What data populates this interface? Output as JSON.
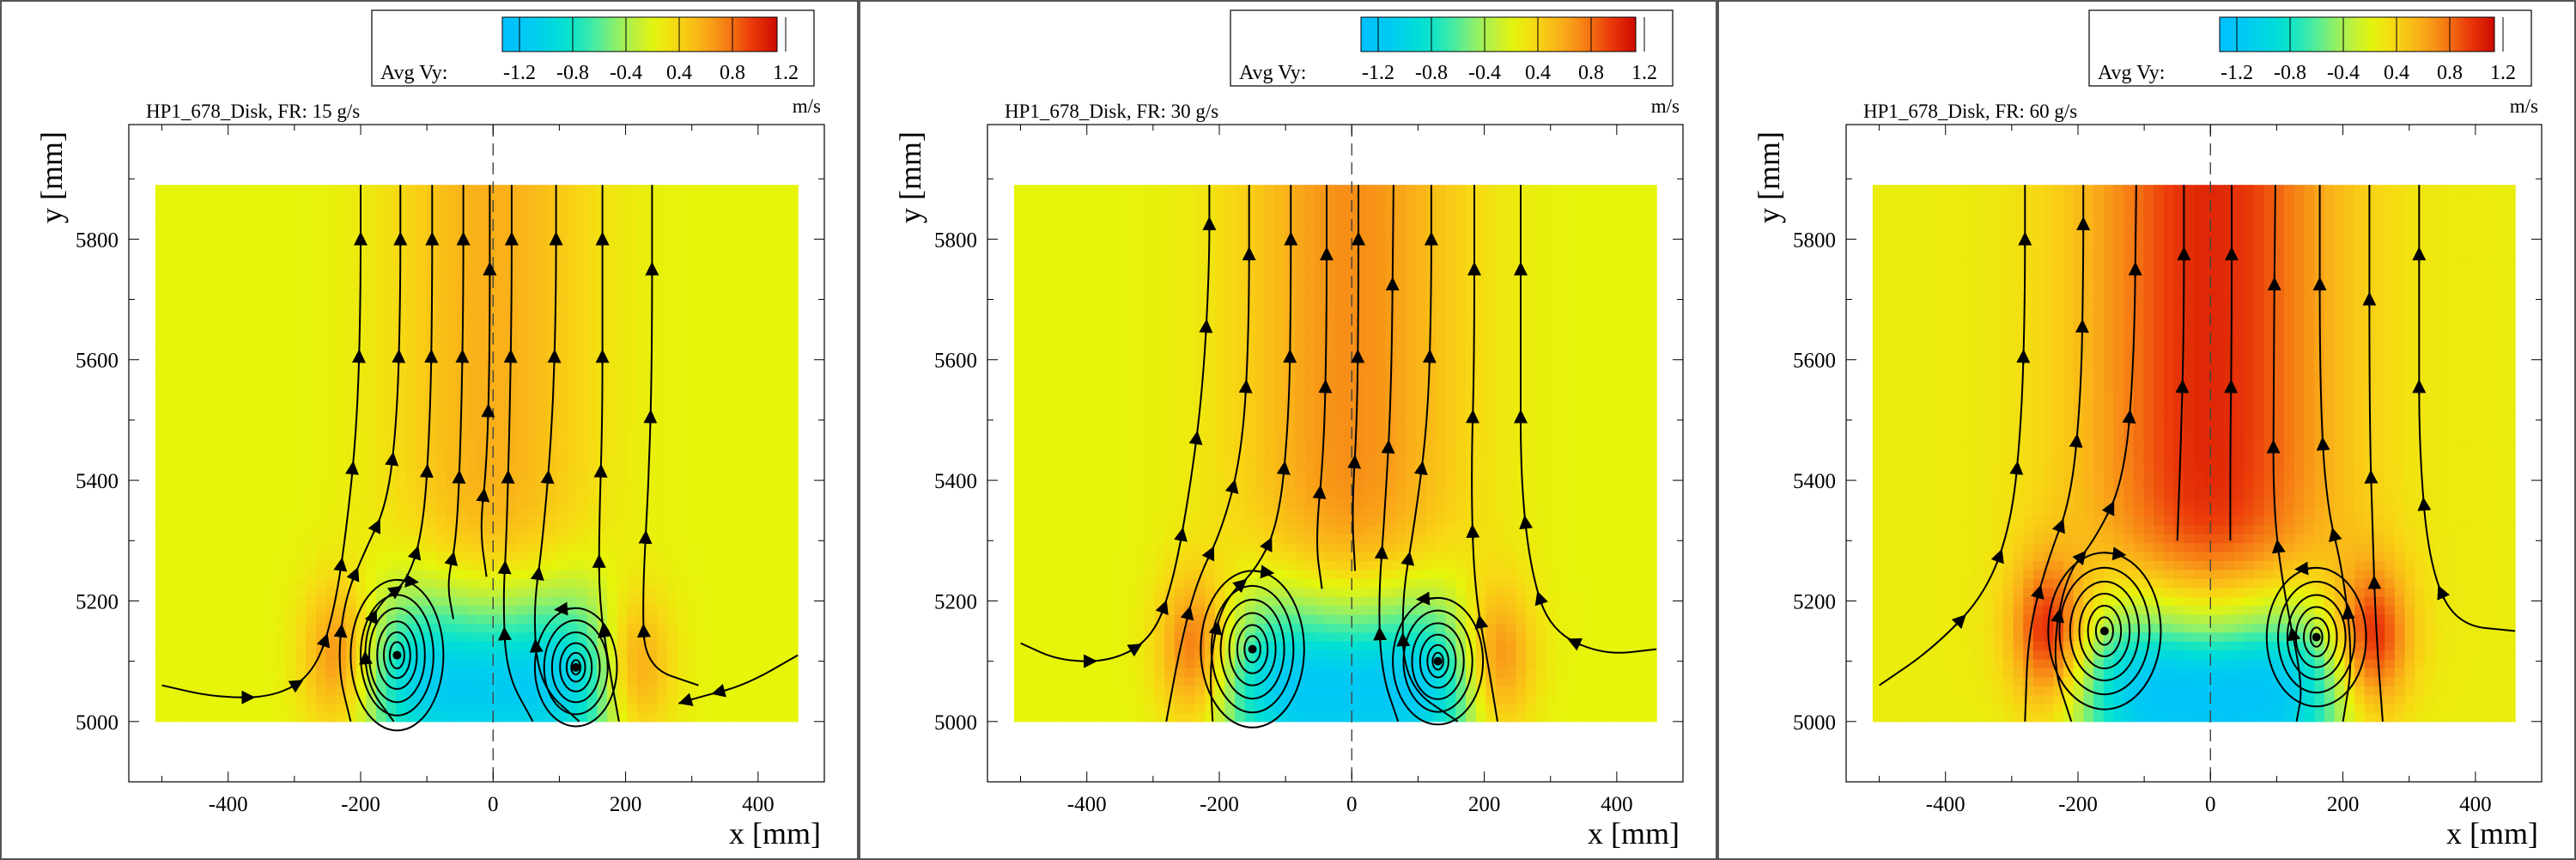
{
  "chart_data": [
    {
      "type": "heatmap",
      "title": "HP1_678_Disk, FR: 15 g/s",
      "xlabel": "x [mm]",
      "ylabel": "y [mm]",
      "xlim": [
        -550,
        500
      ],
      "ylim": [
        4900,
        5990
      ],
      "x_ticks": [
        -400,
        -200,
        0,
        200,
        400
      ],
      "y_ticks": [
        5000,
        5200,
        5400,
        5600,
        5800
      ],
      "colorbar": {
        "label": "Avg Vy:",
        "unit": "m/s",
        "ticks": [
          -1.2,
          -0.8,
          -0.4,
          0.4,
          0.8,
          1.2
        ]
      },
      "field": {
        "x_range": [
          -510,
          460
        ],
        "y_range": [
          5000,
          5890
        ],
        "background": 0.15,
        "jet_peak": 0.45,
        "jet_width": 150,
        "vortex_strength": 1.15,
        "vortex_centers": [
          [
            -145,
            5110
          ],
          [
            125,
            5090
          ]
        ]
      },
      "streamlines": [
        [
          [
            -500,
            5060
          ],
          [
            -420,
            5040
          ],
          [
            -330,
            5040
          ],
          [
            -270,
            5080
          ],
          [
            -240,
            5180
          ],
          [
            -220,
            5330
          ],
          [
            -205,
            5500
          ],
          [
            -200,
            5700
          ],
          [
            -200,
            5890
          ]
        ],
        [
          [
            -215,
            5000
          ],
          [
            -235,
            5090
          ],
          [
            -225,
            5200
          ],
          [
            -195,
            5280
          ],
          [
            -160,
            5360
          ],
          [
            -145,
            5500
          ],
          [
            -140,
            5700
          ],
          [
            -140,
            5890
          ]
        ],
        [
          [
            -150,
            5000
          ],
          [
            -190,
            5060
          ],
          [
            -195,
            5140
          ],
          [
            -170,
            5200
          ],
          [
            -130,
            5230
          ],
          [
            -105,
            5320
          ],
          [
            -95,
            5500
          ],
          [
            -92,
            5700
          ],
          [
            -92,
            5890
          ]
        ],
        [
          [
            -60,
            5170
          ],
          [
            -70,
            5230
          ],
          [
            -55,
            5300
          ],
          [
            -48,
            5500
          ],
          [
            -45,
            5700
          ],
          [
            -45,
            5890
          ]
        ],
        [
          [
            -10,
            5240
          ],
          [
            -20,
            5320
          ],
          [
            -10,
            5420
          ],
          [
            -5,
            5600
          ],
          [
            -5,
            5890
          ]
        ],
        [
          [
            60,
            5000
          ],
          [
            20,
            5080
          ],
          [
            15,
            5200
          ],
          [
            20,
            5300
          ],
          [
            25,
            5500
          ],
          [
            28,
            5700
          ],
          [
            28,
            5890
          ]
        ],
        [
          [
            130,
            5000
          ],
          [
            70,
            5060
          ],
          [
            60,
            5180
          ],
          [
            75,
            5300
          ],
          [
            90,
            5500
          ],
          [
            95,
            5700
          ],
          [
            95,
            5890
          ]
        ],
        [
          [
            190,
            5000
          ],
          [
            175,
            5090
          ],
          [
            160,
            5200
          ],
          [
            160,
            5320
          ],
          [
            165,
            5500
          ],
          [
            165,
            5700
          ],
          [
            165,
            5890
          ]
        ],
        [
          [
            310,
            5060
          ],
          [
            230,
            5090
          ],
          [
            225,
            5200
          ],
          [
            235,
            5400
          ],
          [
            240,
            5600
          ],
          [
            240,
            5890
          ]
        ],
        [
          [
            460,
            5110
          ],
          [
            380,
            5060
          ],
          [
            310,
            5040
          ],
          [
            280,
            5030
          ]
        ]
      ],
      "vortices": [
        {
          "cx": -145,
          "cy": 5110,
          "rings": [
            [
              70,
              125
            ],
            [
              55,
              100
            ],
            [
              42,
              78
            ],
            [
              30,
              56
            ],
            [
              20,
              38
            ],
            [
              11,
              22
            ]
          ],
          "arrow": [
            [
              -145,
              5235
            ],
            [
              -120,
              5232
            ]
          ]
        },
        {
          "cx": 125,
          "cy": 5090,
          "rings": [
            [
              62,
              98
            ],
            [
              48,
              78
            ],
            [
              36,
              58
            ],
            [
              24,
              40
            ],
            [
              14,
              24
            ],
            [
              7,
              12
            ]
          ],
          "arrow": [
            [
              125,
              5188
            ],
            [
              100,
              5186
            ]
          ]
        }
      ]
    },
    {
      "type": "heatmap",
      "title": "HP1_678_Disk, FR: 30 g/s",
      "xlabel": "x [mm]",
      "ylabel": "y [mm]",
      "xlim": [
        -550,
        500
      ],
      "ylim": [
        4900,
        5990
      ],
      "x_ticks": [
        -400,
        -200,
        0,
        200,
        400
      ],
      "y_ticks": [
        5000,
        5200,
        5400,
        5600,
        5800
      ],
      "colorbar": {
        "label": "Avg Vy:",
        "unit": "m/s",
        "ticks": [
          -1.2,
          -0.8,
          -0.4,
          0.4,
          0.8,
          1.2
        ]
      },
      "field": {
        "x_range": [
          -510,
          460
        ],
        "y_range": [
          5000,
          5890
        ],
        "background": 0.15,
        "jet_peak": 0.6,
        "jet_width": 170,
        "vortex_strength": 1.25,
        "vortex_centers": [
          [
            -150,
            5120
          ],
          [
            130,
            5100
          ]
        ]
      },
      "streamlines": [
        [
          [
            -500,
            5130
          ],
          [
            -440,
            5100
          ],
          [
            -360,
            5100
          ],
          [
            -300,
            5140
          ],
          [
            -270,
            5230
          ],
          [
            -245,
            5380
          ],
          [
            -225,
            5550
          ],
          [
            -215,
            5750
          ],
          [
            -215,
            5890
          ]
        ],
        [
          [
            -280,
            5000
          ],
          [
            -260,
            5120
          ],
          [
            -235,
            5230
          ],
          [
            -195,
            5320
          ],
          [
            -165,
            5450
          ],
          [
            -155,
            5650
          ],
          [
            -155,
            5890
          ]
        ],
        [
          [
            -210,
            5000
          ],
          [
            -215,
            5100
          ],
          [
            -195,
            5200
          ],
          [
            -145,
            5250
          ],
          [
            -110,
            5330
          ],
          [
            -95,
            5500
          ],
          [
            -92,
            5700
          ],
          [
            -92,
            5890
          ]
        ],
        [
          [
            -45,
            5220
          ],
          [
            -55,
            5300
          ],
          [
            -42,
            5450
          ],
          [
            -38,
            5650
          ],
          [
            -38,
            5890
          ]
        ],
        [
          [
            5,
            5250
          ],
          [
            0,
            5350
          ],
          [
            8,
            5500
          ],
          [
            10,
            5700
          ],
          [
            10,
            5890
          ]
        ],
        [
          [
            70,
            5000
          ],
          [
            45,
            5080
          ],
          [
            40,
            5200
          ],
          [
            50,
            5350
          ],
          [
            60,
            5550
          ],
          [
            63,
            5890
          ]
        ],
        [
          [
            160,
            5000
          ],
          [
            80,
            5060
          ],
          [
            75,
            5200
          ],
          [
            95,
            5330
          ],
          [
            115,
            5500
          ],
          [
            120,
            5700
          ],
          [
            120,
            5890
          ]
        ],
        [
          [
            220,
            5000
          ],
          [
            205,
            5100
          ],
          [
            185,
            5220
          ],
          [
            180,
            5400
          ],
          [
            185,
            5600
          ],
          [
            185,
            5890
          ]
        ],
        [
          [
            460,
            5120
          ],
          [
            380,
            5110
          ],
          [
            300,
            5150
          ],
          [
            270,
            5250
          ],
          [
            255,
            5400
          ],
          [
            255,
            5600
          ],
          [
            255,
            5890
          ]
        ]
      ],
      "vortices": [
        {
          "cx": -150,
          "cy": 5120,
          "rings": [
            [
              78,
              130
            ],
            [
              62,
              105
            ],
            [
              48,
              82
            ],
            [
              35,
              60
            ],
            [
              23,
              40
            ],
            [
              12,
              22
            ]
          ],
          "arrow": [
            [
              -150,
              5250
            ],
            [
              -125,
              5247
            ]
          ]
        },
        {
          "cx": 130,
          "cy": 5100,
          "rings": [
            [
              68,
              105
            ],
            [
              52,
              84
            ],
            [
              39,
              63
            ],
            [
              27,
              44
            ],
            [
              16,
              27
            ],
            [
              8,
              14
            ]
          ],
          "arrow": [
            [
              130,
              5205
            ],
            [
              105,
              5203
            ]
          ]
        }
      ]
    },
    {
      "type": "heatmap",
      "title": "HP1_678_Disk, FR: 60 g/s",
      "xlabel": "x [mm]",
      "ylabel": "y [mm]",
      "xlim": [
        -550,
        500
      ],
      "ylim": [
        4900,
        5990
      ],
      "x_ticks": [
        -400,
        -200,
        0,
        200,
        400
      ],
      "y_ticks": [
        5000,
        5200,
        5400,
        5600,
        5800
      ],
      "colorbar": {
        "label": "Avg Vy:",
        "unit": "m/s",
        "ticks": [
          -1.2,
          -0.8,
          -0.4,
          0.4,
          0.8,
          1.2
        ]
      },
      "field": {
        "x_range": [
          -510,
          460
        ],
        "y_range": [
          5000,
          5890
        ],
        "background": 0.2,
        "jet_peak": 0.95,
        "jet_width": 190,
        "vortex_strength": 1.45,
        "vortex_centers": [
          [
            -160,
            5150
          ],
          [
            160,
            5140
          ]
        ]
      },
      "streamlines": [
        [
          [
            -500,
            5060
          ],
          [
            -420,
            5120
          ],
          [
            -340,
            5210
          ],
          [
            -300,
            5330
          ],
          [
            -285,
            5500
          ],
          [
            -280,
            5700
          ],
          [
            -280,
            5890
          ]
        ],
        [
          [
            -280,
            5000
          ],
          [
            -275,
            5150
          ],
          [
            -245,
            5270
          ],
          [
            -210,
            5370
          ],
          [
            -195,
            5550
          ],
          [
            -192,
            5750
          ],
          [
            -192,
            5890
          ]
        ],
        [
          [
            -210,
            5000
          ],
          [
            -240,
            5100
          ],
          [
            -220,
            5240
          ],
          [
            -175,
            5300
          ],
          [
            -130,
            5400
          ],
          [
            -115,
            5600
          ],
          [
            -112,
            5890
          ]
        ],
        [
          [
            -50,
            5300
          ],
          [
            -45,
            5450
          ],
          [
            -40,
            5650
          ],
          [
            -40,
            5890
          ]
        ],
        [
          [
            30,
            5300
          ],
          [
            30,
            5450
          ],
          [
            32,
            5650
          ],
          [
            32,
            5890
          ]
        ],
        [
          [
            130,
            5000
          ],
          [
            140,
            5060
          ],
          [
            110,
            5220
          ],
          [
            95,
            5350
          ],
          [
            95,
            5550
          ],
          [
            98,
            5890
          ]
        ],
        [
          [
            200,
            5000
          ],
          [
            215,
            5100
          ],
          [
            200,
            5250
          ],
          [
            175,
            5360
          ],
          [
            165,
            5550
          ],
          [
            165,
            5890
          ]
        ],
        [
          [
            260,
            5000
          ],
          [
            250,
            5150
          ],
          [
            245,
            5300
          ],
          [
            240,
            5500
          ],
          [
            240,
            5890
          ]
        ],
        [
          [
            460,
            5150
          ],
          [
            370,
            5160
          ],
          [
            330,
            5260
          ],
          [
            315,
            5450
          ],
          [
            315,
            5650
          ],
          [
            315,
            5890
          ]
        ]
      ],
      "vortices": [
        {
          "cx": -160,
          "cy": 5150,
          "rings": [
            [
              85,
              130
            ],
            [
              68,
              105
            ],
            [
              52,
              82
            ],
            [
              38,
              62
            ],
            [
              25,
              42
            ],
            [
              13,
              23
            ]
          ],
          "arrow": [
            [
              -160,
              5280
            ],
            [
              -135,
              5277
            ]
          ]
        },
        {
          "cx": 160,
          "cy": 5140,
          "rings": [
            [
              75,
              115
            ],
            [
              58,
              92
            ],
            [
              44,
              70
            ],
            [
              31,
              50
            ],
            [
              19,
              32
            ],
            [
              9,
              16
            ]
          ],
          "arrow": [
            [
              160,
              5255
            ],
            [
              135,
              5253
            ]
          ]
        }
      ]
    }
  ]
}
